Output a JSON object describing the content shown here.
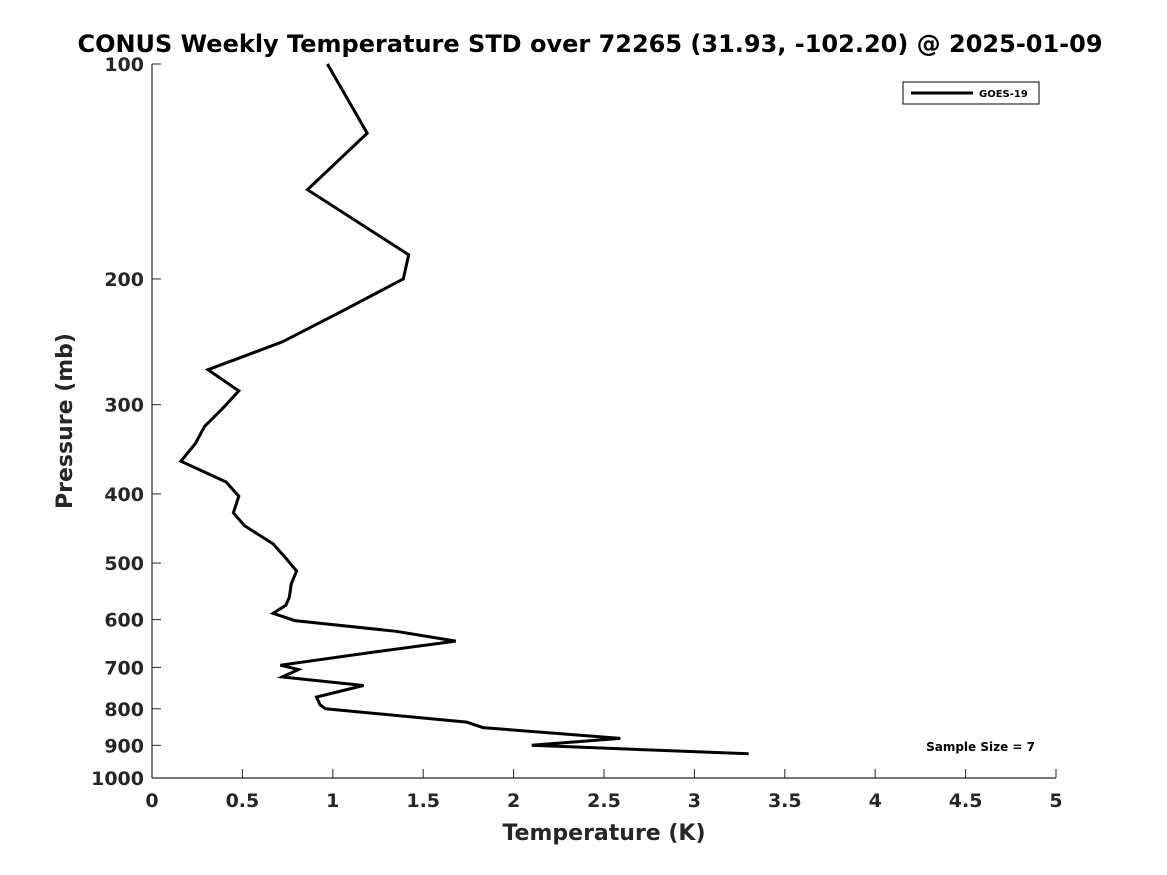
{
  "chart_data": {
    "type": "line",
    "title": "CONUS Weekly Temperature STD over 72265 (31.93, -102.20) @ 2025-01-09",
    "xlabel": "Temperature (K)",
    "ylabel": "Pressure (mb)",
    "xlim": [
      0,
      5
    ],
    "ylim": [
      1000,
      100
    ],
    "y_scale": "log",
    "y_reversed": true,
    "xticks": [
      "0",
      "0.5",
      "1",
      "1.5",
      "2",
      "2.5",
      "3",
      "3.5",
      "4",
      "4.5",
      "5"
    ],
    "yticks": [
      "100",
      "200",
      "300",
      "400",
      "500",
      "600",
      "700",
      "800",
      "900",
      "1000"
    ],
    "grid": false,
    "legend_position": "top-right",
    "series": [
      {
        "name": "GOES-19",
        "color": "#000000",
        "points": [
          {
            "x": 0.97,
            "y": 100
          },
          {
            "x": 1.19,
            "y": 125
          },
          {
            "x": 0.86,
            "y": 150
          },
          {
            "x": 1.42,
            "y": 185
          },
          {
            "x": 1.39,
            "y": 200
          },
          {
            "x": 1.05,
            "y": 222
          },
          {
            "x": 0.72,
            "y": 245
          },
          {
            "x": 0.31,
            "y": 268
          },
          {
            "x": 0.48,
            "y": 287
          },
          {
            "x": 0.4,
            "y": 302
          },
          {
            "x": 0.29,
            "y": 322
          },
          {
            "x": 0.24,
            "y": 340
          },
          {
            "x": 0.16,
            "y": 360
          },
          {
            "x": 0.41,
            "y": 385
          },
          {
            "x": 0.48,
            "y": 403
          },
          {
            "x": 0.45,
            "y": 425
          },
          {
            "x": 0.51,
            "y": 443
          },
          {
            "x": 0.67,
            "y": 470
          },
          {
            "x": 0.74,
            "y": 492
          },
          {
            "x": 0.8,
            "y": 513
          },
          {
            "x": 0.77,
            "y": 535
          },
          {
            "x": 0.76,
            "y": 558
          },
          {
            "x": 0.74,
            "y": 573
          },
          {
            "x": 0.67,
            "y": 588
          },
          {
            "x": 0.79,
            "y": 602
          },
          {
            "x": 1.35,
            "y": 623
          },
          {
            "x": 1.68,
            "y": 643
          },
          {
            "x": 1.25,
            "y": 665
          },
          {
            "x": 0.71,
            "y": 695
          },
          {
            "x": 0.81,
            "y": 705
          },
          {
            "x": 0.72,
            "y": 722
          },
          {
            "x": 1.17,
            "y": 742
          },
          {
            "x": 0.91,
            "y": 770
          },
          {
            "x": 0.93,
            "y": 790
          },
          {
            "x": 0.96,
            "y": 800
          },
          {
            "x": 1.74,
            "y": 835
          },
          {
            "x": 1.83,
            "y": 850
          },
          {
            "x": 2.59,
            "y": 880
          },
          {
            "x": 2.1,
            "y": 900
          },
          {
            "x": 3.3,
            "y": 925
          }
        ]
      }
    ],
    "annotation": "Sample Size = 7"
  }
}
